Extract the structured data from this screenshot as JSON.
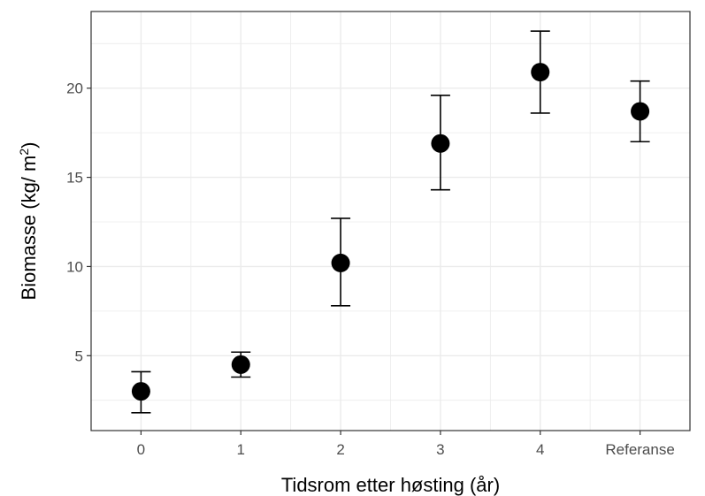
{
  "chart_data": {
    "type": "scatter",
    "categories": [
      "0",
      "1",
      "2",
      "3",
      "4",
      "Referanse"
    ],
    "series": [
      {
        "values": [
          3.0,
          4.5,
          10.2,
          16.9,
          20.9,
          18.7
        ],
        "error_low": [
          1.8,
          3.8,
          7.8,
          14.3,
          18.6,
          17.0
        ],
        "error_high": [
          4.1,
          5.2,
          12.7,
          19.6,
          23.2,
          20.4
        ]
      }
    ],
    "xlabel": "Tidsrom etter høsting (år)",
    "ylabel_main": "Biomasse (kg/ m",
    "ylabel_sup": "2",
    "ylabel_close": ")",
    "ylim": [
      0.8,
      24.3
    ],
    "yticks": [
      5,
      10,
      15,
      20
    ],
    "grid": true,
    "colors": {
      "point": "#000000",
      "errorbar": "#000000",
      "grid": "#ebebeb",
      "panel_border": "#333333",
      "tick_label": "#4d4d4d"
    }
  }
}
